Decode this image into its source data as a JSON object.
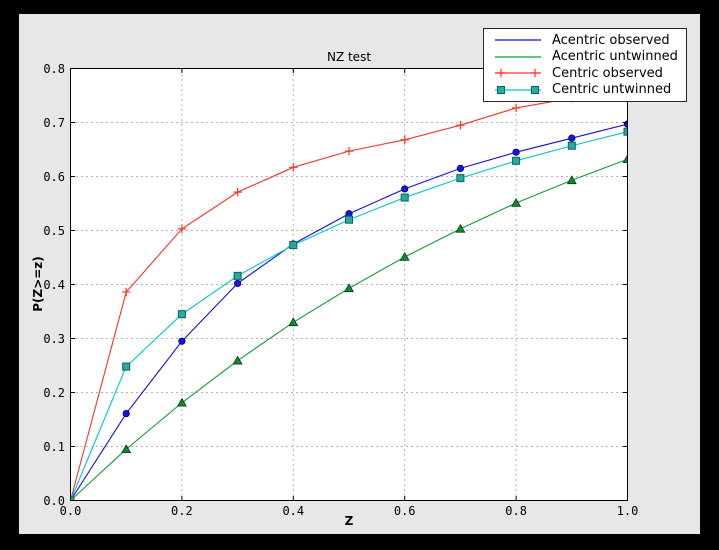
{
  "window": {
    "background": "#000000",
    "figure_background": "#e7e7e7",
    "plot_background": "#ffffff"
  },
  "chart_data": {
    "type": "line",
    "title": "NZ test",
    "xlabel": "Z",
    "ylabel": "P(Z>=z)",
    "xlim": [
      0.0,
      1.0
    ],
    "ylim": [
      0.0,
      0.8
    ],
    "grid": true,
    "grid_style": "dashed",
    "grid_color": "#b3b3b3",
    "legend_position": "top-right",
    "x_ticks": [
      0.0,
      0.2,
      0.4,
      0.6,
      0.8,
      1.0
    ],
    "x_tick_labels": [
      "0.0",
      "0.2",
      "0.4",
      "0.6",
      "0.8",
      "1.0"
    ],
    "y_ticks": [
      0.0,
      0.1,
      0.2,
      0.3,
      0.4,
      0.5,
      0.6,
      0.7,
      0.8
    ],
    "y_tick_labels": [
      "0.0",
      "0.1",
      "0.2",
      "0.3",
      "0.4",
      "0.5",
      "0.6",
      "0.7",
      "0.8"
    ],
    "x": [
      0.0,
      0.1,
      0.2,
      0.3,
      0.4,
      0.5,
      0.6,
      0.7,
      0.8,
      0.9,
      1.0
    ],
    "series": [
      {
        "name": "Acentric observed",
        "color": "#0e0ee8",
        "marker": "circle",
        "marker_fill": "#1414e6",
        "marker_edge": "#000066",
        "legend_markers": false,
        "values": [
          0.0,
          0.161,
          0.295,
          0.402,
          0.475,
          0.531,
          0.577,
          0.615,
          0.645,
          0.671,
          0.697
        ]
      },
      {
        "name": "Acentric untwinned",
        "color": "#0f9e33",
        "marker": "triangle",
        "marker_fill": "#0f8a30",
        "marker_edge": "#063b14",
        "legend_markers": false,
        "values": [
          0.0,
          0.095,
          0.181,
          0.259,
          0.33,
          0.393,
          0.451,
          0.503,
          0.551,
          0.593,
          0.632
        ]
      },
      {
        "name": "Centric observed",
        "color": "#fa3423",
        "marker": "plus",
        "marker_fill": "#fa3423",
        "marker_edge": "#fa3423",
        "legend_markers": true,
        "values": [
          0.0,
          0.386,
          0.503,
          0.571,
          0.617,
          0.647,
          0.668,
          0.695,
          0.727,
          0.745,
          0.76
        ]
      },
      {
        "name": "Centric untwinned",
        "color": "#00c7cf",
        "marker": "square",
        "marker_fill": "#2ba8a0",
        "marker_edge": "#006660",
        "legend_markers": true,
        "values": [
          0.0,
          0.248,
          0.345,
          0.416,
          0.473,
          0.52,
          0.561,
          0.597,
          0.629,
          0.657,
          0.683
        ]
      }
    ]
  }
}
